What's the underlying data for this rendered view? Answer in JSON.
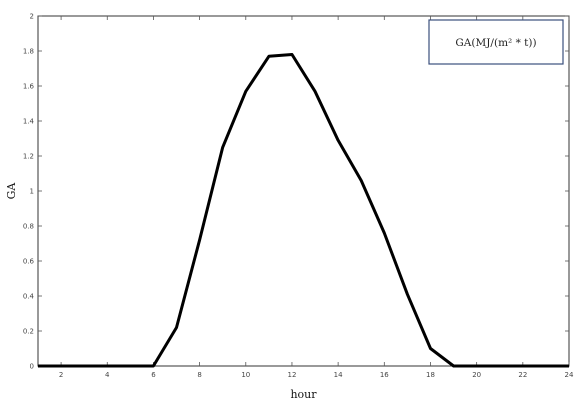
{
  "chart_data": {
    "type": "line",
    "xlabel": "hour",
    "ylabel": "GA",
    "xlim": [
      1,
      24
    ],
    "ylim": [
      0,
      2
    ],
    "x_ticks": [
      2,
      4,
      6,
      8,
      10,
      12,
      14,
      16,
      18,
      20,
      22,
      24
    ],
    "y_ticks": [
      0,
      0.2,
      0.4,
      0.6,
      0.8,
      1,
      1.2,
      1.4,
      1.6,
      1.8,
      2
    ],
    "y_tick_labels": [
      "0",
      "0.2",
      "0.4",
      "0.6",
      "0.8",
      "1",
      "1.2",
      "1.4",
      "1.6",
      "1.8",
      "2"
    ],
    "legend_position": "top-right",
    "grid": false,
    "series": [
      {
        "name": "GA(MJ/(m² * t))",
        "color": "#000000",
        "x": [
          1,
          2,
          3,
          4,
          5,
          6,
          7,
          8,
          9,
          10,
          11,
          12,
          13,
          14,
          15,
          16,
          17,
          18,
          19,
          20,
          21,
          22,
          23,
          24
        ],
        "y": [
          0,
          0,
          0,
          0,
          0,
          0,
          0.22,
          0.72,
          1.25,
          1.57,
          1.77,
          1.78,
          1.57,
          1.29,
          1.06,
          0.76,
          0.41,
          0.1,
          0,
          0,
          0,
          0,
          0,
          0
        ]
      }
    ]
  }
}
